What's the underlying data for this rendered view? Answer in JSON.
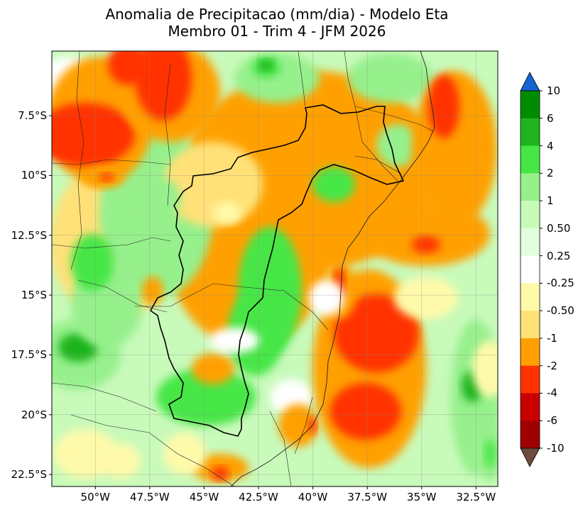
{
  "title": {
    "line1": "Anomalia de Precipitacao (mm/dia) - Modelo Eta",
    "line2": "Membro 01 - Trim 4 - JFM 2026"
  },
  "map": {
    "lon_range": [
      -52.0,
      -31.5
    ],
    "lat_range": [
      -23.0,
      -4.8
    ],
    "lat_ticks": [
      {
        "value": -7.5,
        "label": "7.5°S"
      },
      {
        "value": -10.0,
        "label": "10°S"
      },
      {
        "value": -12.5,
        "label": "12.5°S"
      },
      {
        "value": -15.0,
        "label": "15°S"
      },
      {
        "value": -17.5,
        "label": "17.5°S"
      },
      {
        "value": -20.0,
        "label": "20°S"
      },
      {
        "value": -22.5,
        "label": "22.5°S"
      }
    ],
    "lon_ticks": [
      {
        "value": -50.0,
        "label": "50°W"
      },
      {
        "value": -47.5,
        "label": "47.5°W"
      },
      {
        "value": -45.0,
        "label": "45°W"
      },
      {
        "value": -42.5,
        "label": "42.5°W"
      },
      {
        "value": -40.0,
        "label": "40°W"
      },
      {
        "value": -37.5,
        "label": "37.5°W"
      },
      {
        "value": -35.0,
        "label": "35°W"
      },
      {
        "value": -32.5,
        "label": "32.5°W"
      }
    ],
    "gridlines": true
  },
  "colorbar": {
    "labels": [
      "10",
      "6",
      "4",
      "2",
      "1",
      "0.50",
      "0.25",
      "-0.25",
      "-0.50",
      "-1",
      "-2",
      "-4",
      "-6",
      "-10"
    ],
    "colors": [
      "#008c00",
      "#1eb41e",
      "#46e646",
      "#96f08c",
      "#c8faba",
      "#e1ffdc",
      "#ffffff",
      "#fffaaa",
      "#ffe178",
      "#ffa000",
      "#ff3200",
      "#c80000",
      "#a00000"
    ],
    "extend_max_color": "#1464d2",
    "extend_min_color": "#6e4b3c"
  }
}
